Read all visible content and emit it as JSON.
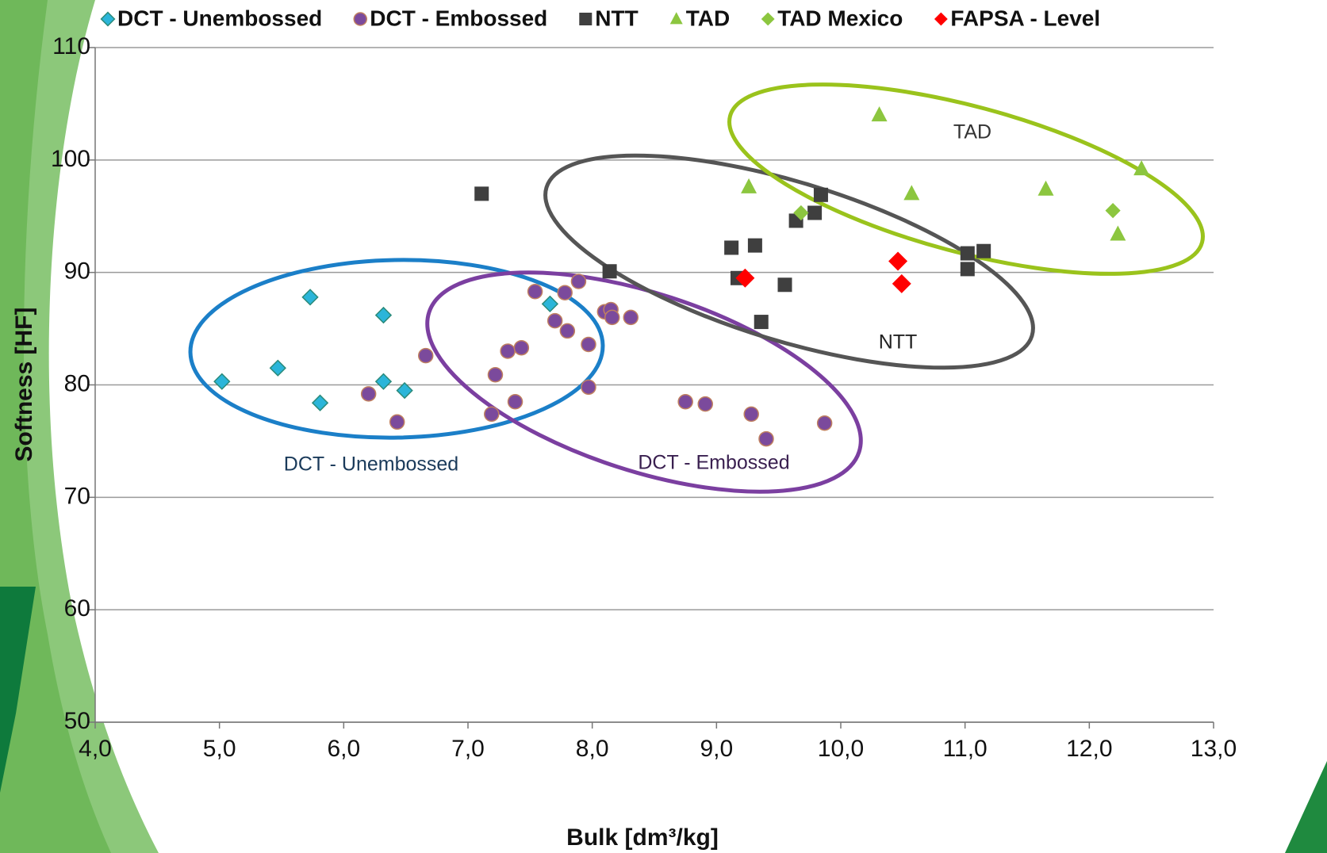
{
  "chart_data": {
    "type": "scatter",
    "x_label": "Bulk [dm³/kg]",
    "y_label": "Softness [HF]",
    "xlim": [
      4,
      13
    ],
    "ylim": [
      50,
      110
    ],
    "xticks": [
      {
        "value": 4,
        "label": "4,0"
      },
      {
        "value": 5,
        "label": "5,0"
      },
      {
        "value": 6,
        "label": "6,0"
      },
      {
        "value": 7,
        "label": "7,0"
      },
      {
        "value": 8,
        "label": "8,0"
      },
      {
        "value": 9,
        "label": "9,0"
      },
      {
        "value": 10,
        "label": "10,0"
      },
      {
        "value": 11,
        "label": "11,0"
      },
      {
        "value": 12,
        "label": "12,0"
      },
      {
        "value": 13,
        "label": "13,0"
      }
    ],
    "yticks": [
      50,
      60,
      70,
      80,
      90,
      100,
      110
    ],
    "grid": true,
    "legend": "top",
    "annotations": [
      "DCT - Unembossed",
      "DCT - Embossed",
      "NTT",
      "TAD"
    ],
    "series": [
      {
        "name": "DCT - Unembossed",
        "color": "#2bb5d9",
        "marker": "diamond",
        "x": [
          5.02,
          5.47,
          5.73,
          5.81,
          6.32,
          6.32,
          6.49,
          7.66
        ],
        "values": [
          80.3,
          81.5,
          87.8,
          78.4,
          86.2,
          80.3,
          79.5,
          87.2
        ]
      },
      {
        "name": "DCT - Embossed",
        "color": "#7b4a9c",
        "marker": "circle",
        "x": [
          6.2,
          6.43,
          6.66,
          7.19,
          7.22,
          7.32,
          7.38,
          7.43,
          7.54,
          7.7,
          7.78,
          7.8,
          7.89,
          7.97,
          7.97,
          8.1,
          8.15,
          8.16,
          8.31,
          8.75,
          8.91,
          9.28,
          9.4,
          9.87
        ],
        "values": [
          79.2,
          76.7,
          82.6,
          77.4,
          80.9,
          83.0,
          78.5,
          83.3,
          88.3,
          85.7,
          88.2,
          84.8,
          89.2,
          83.6,
          79.8,
          86.5,
          86.7,
          86.0,
          86.0,
          78.5,
          78.3,
          77.4,
          75.2,
          76.6
        ]
      },
      {
        "name": "NTT",
        "color": "#3f3f3f",
        "marker": "square",
        "x": [
          7.11,
          8.14,
          9.12,
          9.17,
          9.31,
          9.36,
          9.55,
          9.64,
          9.79,
          9.84,
          11.02,
          11.02,
          11.15
        ],
        "values": [
          97.0,
          90.1,
          92.2,
          89.5,
          92.4,
          85.6,
          88.9,
          94.6,
          95.3,
          96.9,
          91.7,
          90.3,
          91.9
        ]
      },
      {
        "name": "TAD",
        "color": "#8cc63f",
        "marker": "triangle",
        "x": [
          10.31,
          9.26,
          10.57,
          11.65,
          12.42,
          12.23
        ],
        "values": [
          104.0,
          97.6,
          97.0,
          97.4,
          99.2,
          93.4
        ]
      },
      {
        "name": "TAD Mexico",
        "color": "#8cc63f",
        "marker": "diamond",
        "x": [
          9.68,
          12.19
        ],
        "values": [
          95.3,
          95.5
        ]
      },
      {
        "name": "FAPSA - Level",
        "color": "#ff0000",
        "marker": "diamond",
        "x": [
          9.23,
          10.46,
          10.49
        ],
        "values": [
          89.5,
          91.0,
          89.0
        ]
      }
    ]
  }
}
